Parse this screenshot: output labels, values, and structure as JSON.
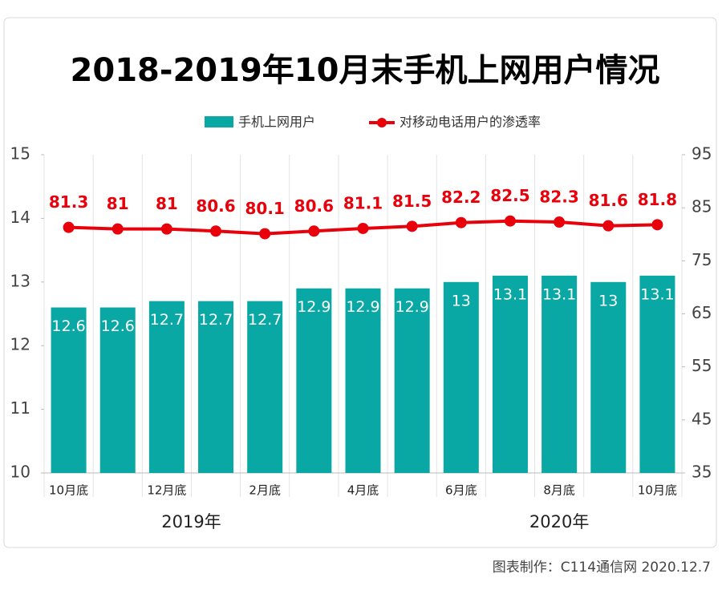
{
  "chart_data": {
    "type": "bar",
    "title": "2018-2019年10月末手机上网用户情况",
    "categories": [
      "10月底",
      null,
      "12月底",
      null,
      "2月底",
      null,
      "4月底",
      null,
      "6月底",
      null,
      "8月底",
      null,
      "10月底"
    ],
    "year_labels": [
      "2019年",
      "2020年"
    ],
    "series": [
      {
        "name": "手机上网用户",
        "color": "#0aa8a4",
        "type": "bar",
        "values": [
          12.6,
          12.6,
          12.7,
          12.7,
          12.7,
          12.9,
          12.9,
          12.9,
          13,
          13.1,
          13.1,
          13,
          13.1
        ]
      },
      {
        "name": "对移动电话用户的渗透率",
        "color": "#e8000b",
        "type": "line",
        "axis": "y2",
        "values": [
          81.3,
          81,
          81,
          80.6,
          80.1,
          80.6,
          81.1,
          81.5,
          82.2,
          82.5,
          82.3,
          81.6,
          81.8
        ]
      }
    ],
    "ylim": [
      10,
      15
    ],
    "yticks": [
      10,
      11,
      12,
      13,
      14,
      15
    ],
    "y2lim": [
      35,
      95
    ],
    "y2ticks": [
      35,
      45,
      55,
      65,
      75,
      85,
      95
    ],
    "grid": true,
    "source": "图表制作：C114通信网  2020.12.7"
  }
}
